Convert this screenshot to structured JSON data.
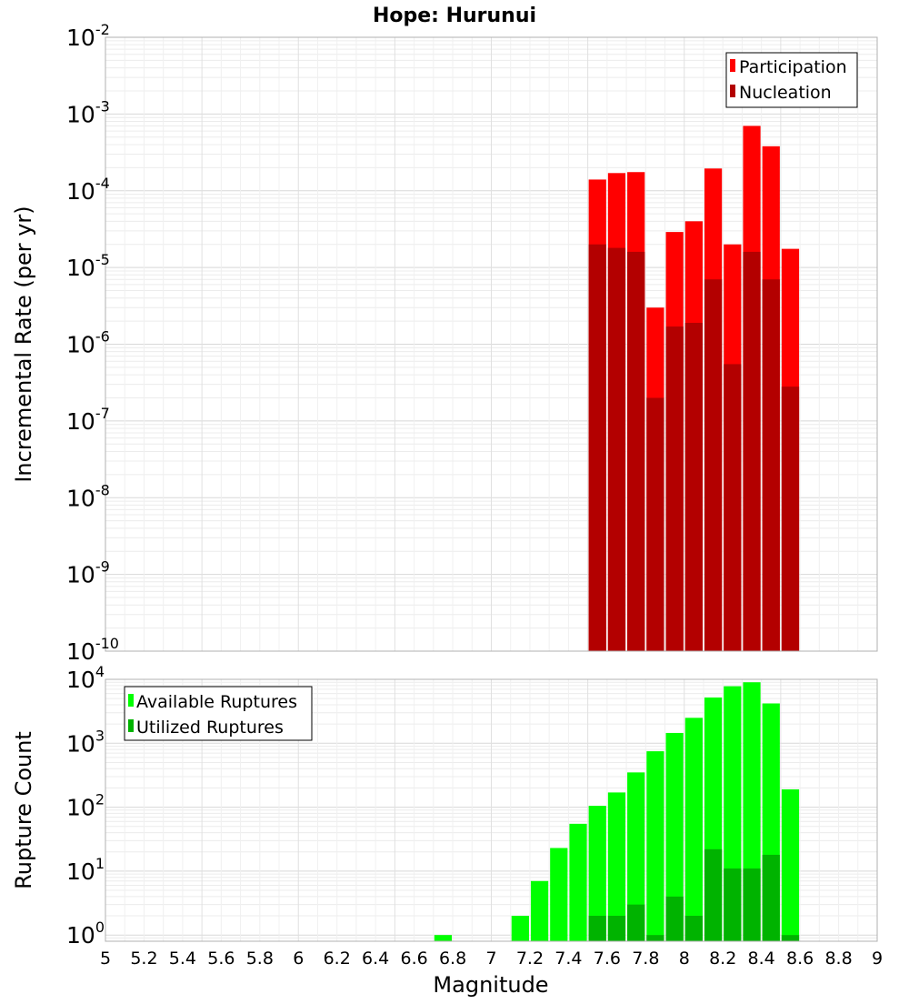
{
  "figure": {
    "title": "Hope: Hurunui",
    "xlabel": "Magnitude"
  },
  "colors": {
    "participation": "#ff0000",
    "nucleation": "#b30000",
    "available": "#00ff00",
    "utilized": "#00b300",
    "grid": "#e6e6e6",
    "frame": "#b0b0b0"
  },
  "chart_data": [
    {
      "type": "bar",
      "title": "Hope: Hurunui",
      "ylabel": "Incremental Rate (per yr)",
      "yscale": "log",
      "ylim": [
        1e-10,
        0.01
      ],
      "xlim": [
        5,
        9
      ],
      "grid": true,
      "legend_position": "top-right",
      "x_tick_labels": [],
      "y_ticks": [
        {
          "base": "10",
          "exp": "-10"
        },
        {
          "base": "10",
          "exp": "-9"
        },
        {
          "base": "10",
          "exp": "-8"
        },
        {
          "base": "10",
          "exp": "-7"
        },
        {
          "base": "10",
          "exp": "-6"
        },
        {
          "base": "10",
          "exp": "-5"
        },
        {
          "base": "10",
          "exp": "-4"
        },
        {
          "base": "10",
          "exp": "-3"
        },
        {
          "base": "10",
          "exp": "-2"
        }
      ],
      "x": [
        7.55,
        7.65,
        7.75,
        7.85,
        7.95,
        8.05,
        8.15,
        8.25,
        8.35,
        8.45,
        8.55
      ],
      "series": [
        {
          "name": "Participation",
          "color": "#ff0000",
          "values": [
            0.00014,
            0.00017,
            0.000175,
            3e-06,
            2.9e-05,
            4e-05,
            0.000195,
            2e-05,
            0.0007,
            0.00038,
            1.75e-05
          ]
        },
        {
          "name": "Nucleation",
          "color": "#b30000",
          "values": [
            2e-05,
            1.8e-05,
            1.6e-05,
            2e-07,
            1.7e-06,
            1.9e-06,
            7e-06,
            5.5e-07,
            1.6e-05,
            7e-06,
            2.8e-07
          ]
        }
      ]
    },
    {
      "type": "bar",
      "ylabel": "Rupture Count",
      "xlabel": "Magnitude",
      "yscale": "log",
      "ylim": [
        0.8,
        10000
      ],
      "xlim": [
        5,
        9
      ],
      "grid": true,
      "legend_position": "top-left",
      "x_tick_labels": [
        "5",
        "5.2",
        "5.4",
        "5.6",
        "5.8",
        "6",
        "6.2",
        "6.4",
        "6.6",
        "6.8",
        "7",
        "7.2",
        "7.4",
        "7.6",
        "7.8",
        "8",
        "8.2",
        "8.4",
        "8.6",
        "8.8",
        "9"
      ],
      "y_ticks": [
        {
          "base": "10",
          "exp": "0"
        },
        {
          "base": "10",
          "exp": "1"
        },
        {
          "base": "10",
          "exp": "2"
        },
        {
          "base": "10",
          "exp": "3"
        },
        {
          "base": "10",
          "exp": "4"
        }
      ],
      "x": [
        6.75,
        7.15,
        7.25,
        7.35,
        7.45,
        7.55,
        7.65,
        7.75,
        7.85,
        7.95,
        8.05,
        8.15,
        8.25,
        8.35,
        8.45,
        8.55
      ],
      "series": [
        {
          "name": "Available Ruptures",
          "color": "#00ff00",
          "values": [
            1,
            2,
            7,
            23,
            55,
            105,
            170,
            350,
            750,
            1450,
            2500,
            5200,
            7800,
            9000,
            4200,
            190
          ]
        },
        {
          "name": "Utilized Ruptures",
          "color": "#00b300",
          "values": [
            0,
            0,
            0,
            0,
            0,
            2,
            2,
            3,
            1,
            4,
            2,
            22,
            11,
            11,
            18,
            1
          ]
        }
      ]
    }
  ]
}
